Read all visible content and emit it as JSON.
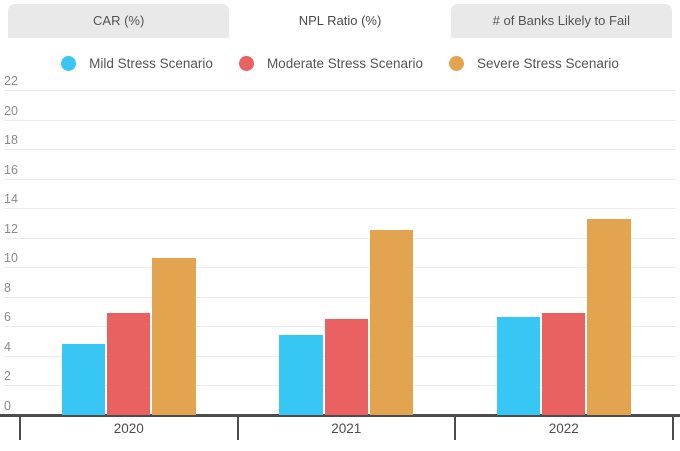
{
  "tabs": {
    "items": [
      {
        "label": "CAR (%)",
        "active": false
      },
      {
        "label": "NPL Ratio (%)",
        "active": true
      },
      {
        "label": "# of Banks Likely to Fail",
        "active": false
      }
    ]
  },
  "colors": {
    "tabbar_inactive_bg": "#e9e9e9",
    "tab_active_bg": "#ffffff",
    "gridline": "#ececec",
    "axis_line": "#4c4c4c",
    "y_tick_label": "#8b8b8b",
    "x_tick_label": "#4d4d4d",
    "legend_text": "#555555",
    "mild": "#38c6f4",
    "moderate": "#e96161",
    "severe": "#e2a44e"
  },
  "chart_data": {
    "type": "bar",
    "title": "NPL Ratio (%)",
    "categories": [
      "2020",
      "2021",
      "2022"
    ],
    "series": [
      {
        "name": "Mild Stress Scenario",
        "color": "#38c6f4",
        "values": [
          4.8,
          5.4,
          6.6
        ]
      },
      {
        "name": "Moderate Stress Scenario",
        "color": "#e96161",
        "values": [
          6.9,
          6.5,
          6.9
        ]
      },
      {
        "name": "Severe Stress Scenario",
        "color": "#e2a44e",
        "values": [
          10.6,
          12.5,
          13.3
        ]
      }
    ],
    "ylim": [
      0,
      22
    ],
    "ytick_step": 2,
    "yticks": [
      0,
      2,
      4,
      6,
      8,
      10,
      12,
      14,
      16,
      18,
      20,
      22
    ],
    "legend_position": "top",
    "grid": "horizontal"
  }
}
